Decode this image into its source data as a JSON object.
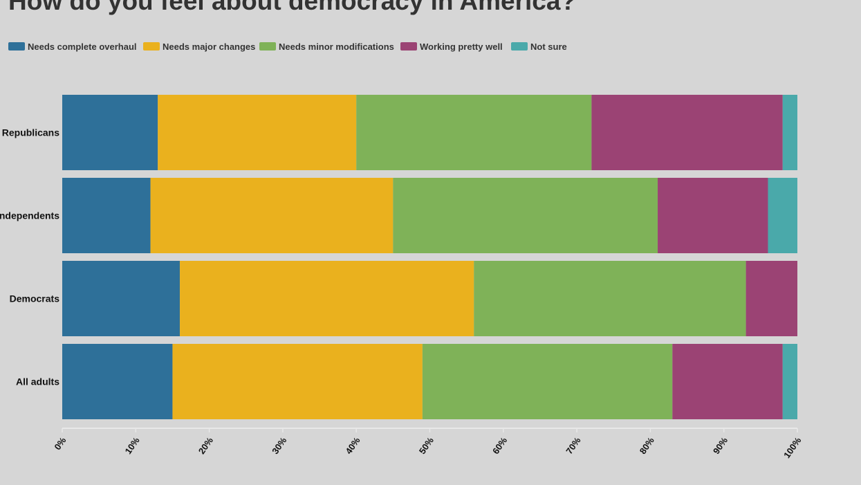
{
  "chart_data": {
    "type": "bar",
    "orientation": "horizontal",
    "stacked": true,
    "title": "How do you feel about democracy in America?",
    "categories": [
      "Republicans",
      "Independents",
      "Democrats",
      "All adults"
    ],
    "series": [
      {
        "name": "Needs complete overhaul",
        "color": "#2e7099",
        "values": [
          13,
          12,
          16,
          15
        ]
      },
      {
        "name": "Needs major changes",
        "color": "#eab11e",
        "values": [
          27,
          33,
          40,
          34
        ]
      },
      {
        "name": "Needs minor modifications",
        "color": "#7fb258",
        "values": [
          32,
          36,
          37,
          34
        ]
      },
      {
        "name": "Working pretty well",
        "color": "#9b4374",
        "values": [
          26,
          15,
          7,
          15
        ]
      },
      {
        "name": "Not sure",
        "color": "#4aa9aa",
        "values": [
          2,
          4,
          0,
          2
        ]
      }
    ],
    "xlim": [
      0,
      100
    ],
    "xticks": [
      "0%",
      "10%",
      "20%",
      "30%",
      "40%",
      "50%",
      "60%",
      "70%",
      "80%",
      "90%",
      "100%"
    ],
    "legend_position": "top-left",
    "grid": false
  }
}
